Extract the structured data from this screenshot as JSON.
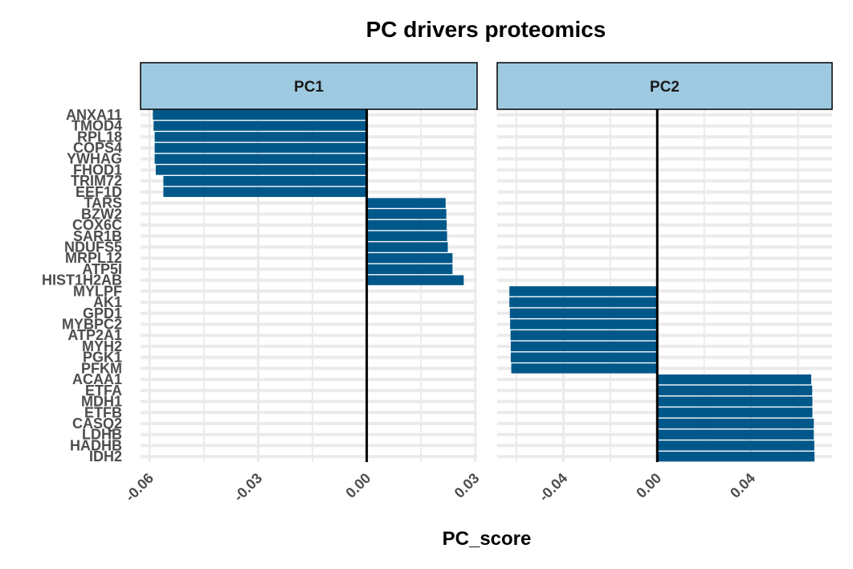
{
  "chart_data": {
    "type": "bar",
    "orientation": "horizontal",
    "title": "PC drivers proteomics",
    "xlabel": "PC_score",
    "ylabel": "",
    "bar_color": "#00588A",
    "strip_fill": "#9ECAE1",
    "zero_line_color": "#000000",
    "grid": true,
    "categories": [
      "ANXA11",
      "TMOD4",
      "RPL18",
      "COPS4",
      "YWHAG",
      "FHOD1",
      "TRIM72",
      "EEF1D",
      "TARS",
      "BZW2",
      "COX6C",
      "SAR1B",
      "NDUFS5",
      "MRPL12",
      "ATP5I",
      "HIST1H2AB",
      "MYLPF",
      "AK1",
      "GPD1",
      "MYBPC2",
      "ATP2A1",
      "MYH2",
      "PGK1",
      "PFKM",
      "ACAA1",
      "ETFA",
      "MDH1",
      "ETFB",
      "CASQ2",
      "LDHB",
      "HADHB",
      "IDH2"
    ],
    "panels": [
      {
        "name": "PC1",
        "xlim": [
          -0.0625,
          0.0305
        ],
        "xticks": [
          -0.06,
          -0.03,
          0.0,
          0.03
        ],
        "xtick_labels": [
          "-0.06",
          "-0.03",
          "0.00",
          "0.03"
        ],
        "bars": [
          {
            "label": "ANXA11",
            "value": -0.0591
          },
          {
            "label": "TMOD4",
            "value": -0.0589
          },
          {
            "label": "RPL18",
            "value": -0.0586
          },
          {
            "label": "COPS4",
            "value": -0.0586
          },
          {
            "label": "YWHAG",
            "value": -0.0586
          },
          {
            "label": "FHOD1",
            "value": -0.0583
          },
          {
            "label": "TRIM72",
            "value": -0.0562
          },
          {
            "label": "EEF1D",
            "value": -0.0562
          },
          {
            "label": "TARS",
            "value": 0.0218
          },
          {
            "label": "BZW2",
            "value": 0.022
          },
          {
            "label": "COX6C",
            "value": 0.0221
          },
          {
            "label": "SAR1B",
            "value": 0.0222
          },
          {
            "label": "NDUFS5",
            "value": 0.0224
          },
          {
            "label": "MRPL12",
            "value": 0.0237
          },
          {
            "label": "ATP5I",
            "value": 0.0237
          },
          {
            "label": "HIST1H2AB",
            "value": 0.0268
          }
        ]
      },
      {
        "name": "PC2",
        "xlim": [
          -0.0682,
          0.0745
        ],
        "xticks": [
          -0.04,
          0.0,
          0.04
        ],
        "xtick_labels": [
          "-0.04",
          "0.00",
          "0.04"
        ],
        "bars": [
          {
            "label": "MYLPF",
            "value": -0.063
          },
          {
            "label": "AK1",
            "value": -0.063
          },
          {
            "label": "GPD1",
            "value": -0.0628
          },
          {
            "label": "MYBPC2",
            "value": -0.0627
          },
          {
            "label": "ATP2A1",
            "value": -0.0625
          },
          {
            "label": "MYH2",
            "value": -0.0624
          },
          {
            "label": "PGK1",
            "value": -0.0624
          },
          {
            "label": "PFKM",
            "value": -0.0622
          },
          {
            "label": "ACAA1",
            "value": 0.0656
          },
          {
            "label": "ETFA",
            "value": 0.066
          },
          {
            "label": "MDH1",
            "value": 0.0661
          },
          {
            "label": "ETFB",
            "value": 0.0661
          },
          {
            "label": "CASQ2",
            "value": 0.0667
          },
          {
            "label": "LDHB",
            "value": 0.0667
          },
          {
            "label": "HADHB",
            "value": 0.0669
          },
          {
            "label": "IDH2",
            "value": 0.067
          }
        ]
      }
    ]
  }
}
